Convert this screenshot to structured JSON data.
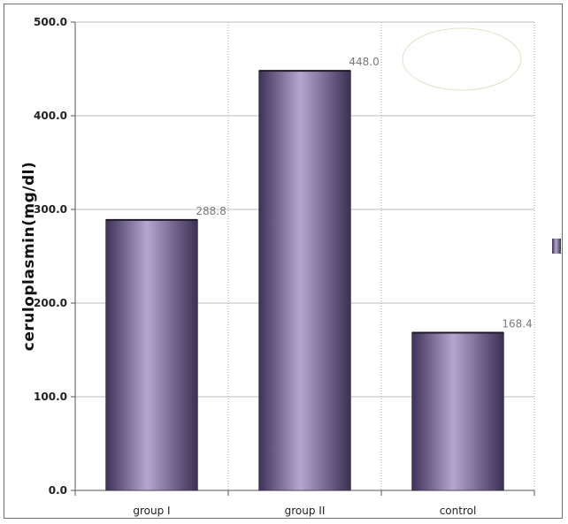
{
  "chart_data": {
    "type": "bar",
    "title": "",
    "xlabel": "",
    "ylabel": "ceruloplasmin(mg/dl)",
    "categories": [
      "group I",
      "group II",
      "control"
    ],
    "values": [
      288.8,
      448.0,
      168.4
    ],
    "value_labels": [
      "288.8",
      "448.0",
      "168.4"
    ],
    "ylim": [
      0,
      500
    ],
    "yticks": [
      0,
      100,
      200,
      300,
      400,
      500
    ],
    "ytick_labels": [
      "0.0",
      "100.0",
      "200.0",
      "300.0",
      "400.0",
      "500.0"
    ],
    "grid": true,
    "legend": "right",
    "bar_color_dark": "#3e3258",
    "bar_color_light": "#b5a6cf"
  }
}
